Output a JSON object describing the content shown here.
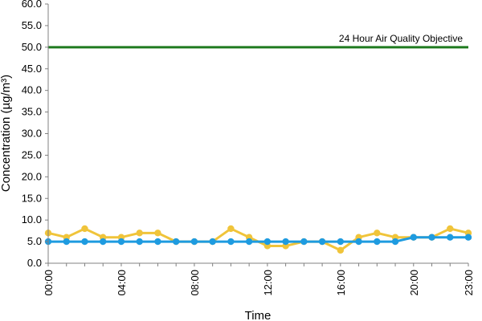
{
  "chart_data": {
    "type": "line",
    "title": "",
    "xlabel": "Time",
    "ylabel": "Concentration (µg/m³)",
    "ylim": [
      0,
      60
    ],
    "xlim": [
      0,
      23
    ],
    "grid": false,
    "y_ticks": [
      "0.0",
      "5.0",
      "10.0",
      "15.0",
      "20.0",
      "25.0",
      "30.0",
      "35.0",
      "40.0",
      "45.0",
      "50.0",
      "55.0",
      "60.0"
    ],
    "x_ticks": [
      {
        "hour": 0,
        "label": "00:00"
      },
      {
        "hour": 4,
        "label": "04:00"
      },
      {
        "hour": 8,
        "label": "08:00"
      },
      {
        "hour": 12,
        "label": "12:00"
      },
      {
        "hour": 16,
        "label": "16:00"
      },
      {
        "hour": 20,
        "label": "20:00"
      },
      {
        "hour": 23,
        "label": "23:00"
      }
    ],
    "x": [
      0,
      1,
      2,
      3,
      4,
      5,
      6,
      7,
      8,
      9,
      10,
      11,
      12,
      13,
      14,
      15,
      16,
      17,
      18,
      19,
      20,
      21,
      22,
      23
    ],
    "series": [
      {
        "color": "#f0c43a",
        "values": [
          7,
          6,
          8,
          6,
          6,
          7,
          7,
          5,
          5,
          5,
          8,
          6,
          4,
          4,
          5,
          5,
          3,
          6,
          7,
          6,
          6,
          6,
          8,
          7
        ]
      },
      {
        "color": "#1e9be0",
        "values": [
          5,
          5,
          5,
          5,
          5,
          5,
          5,
          5,
          5,
          5,
          5,
          5,
          5,
          5,
          5,
          5,
          5,
          5,
          5,
          5,
          6,
          6,
          6,
          6
        ]
      }
    ],
    "objective": {
      "value": 50,
      "label": "24 Hour Air Quality Objective",
      "color": "#1f7a1f"
    }
  }
}
